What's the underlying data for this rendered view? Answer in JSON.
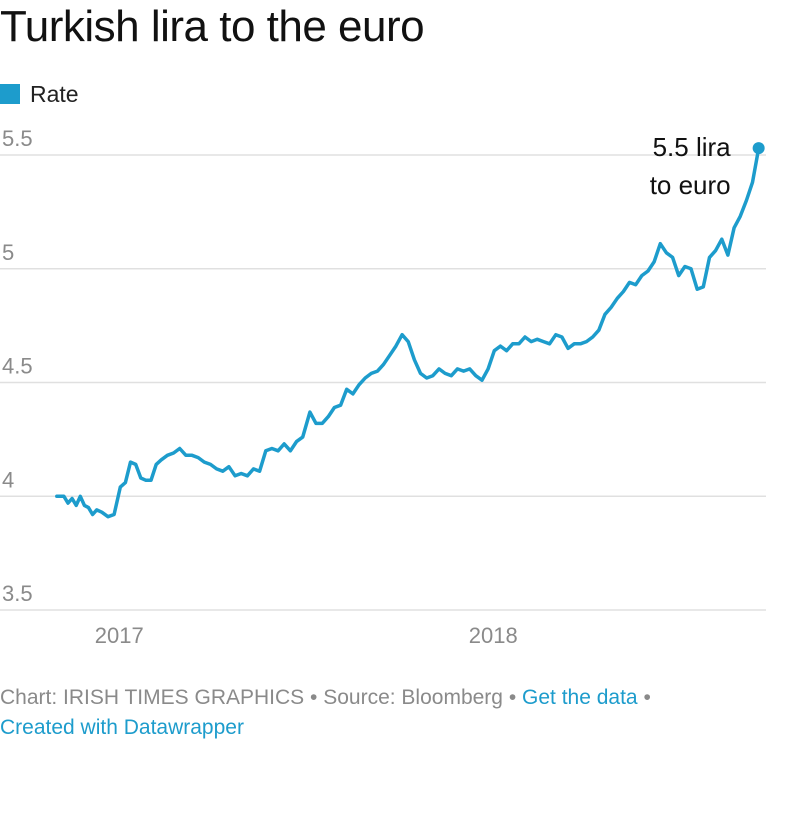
{
  "title": "Turkish lira to the euro",
  "legend": {
    "label": "Rate",
    "color": "#1d9ccc"
  },
  "annotation": {
    "line1": "5.5 lira",
    "line2": "to euro"
  },
  "footer": {
    "chart_credit": "Chart: IRISH TIMES GRAPHICS",
    "source": "Source: Bloomberg",
    "get_data": "Get the data",
    "created_with": "Created with Datawrapper",
    "separator": "•"
  },
  "colors": {
    "line": "#1d9ccc",
    "grid": "#e0e0e0",
    "axis_text": "#8a8a8a"
  },
  "chart_data": {
    "type": "line",
    "title": "Turkish lira to the euro",
    "xlabel": "",
    "ylabel": "",
    "ylim": [
      3.5,
      5.5
    ],
    "yticks": [
      3.5,
      4,
      4.5,
      5,
      5.5
    ],
    "ytick_labels": [
      "3.5",
      "4",
      "4.5",
      "5",
      "5.5"
    ],
    "xticks": [
      "2017-01-01",
      "2018-01-01"
    ],
    "xtick_labels": [
      "2017",
      "2018"
    ],
    "xlim": [
      "2016-10-01",
      "2018-10-01"
    ],
    "grid": true,
    "legend_position": "top-left",
    "series": [
      {
        "name": "Rate",
        "x": [
          "2016-11-01",
          "2016-11-08",
          "2016-11-12",
          "2016-11-16",
          "2016-11-20",
          "2016-11-24",
          "2016-11-28",
          "2016-12-02",
          "2016-12-06",
          "2016-12-10",
          "2016-12-15",
          "2016-12-21",
          "2016-12-27",
          "2017-01-02",
          "2017-01-07",
          "2017-01-12",
          "2017-01-17",
          "2017-01-22",
          "2017-01-27",
          "2017-02-01",
          "2017-02-06",
          "2017-02-11",
          "2017-02-17",
          "2017-02-23",
          "2017-03-01",
          "2017-03-07",
          "2017-03-13",
          "2017-03-19",
          "2017-03-25",
          "2017-03-31",
          "2017-04-06",
          "2017-04-12",
          "2017-04-18",
          "2017-04-24",
          "2017-04-30",
          "2017-05-06",
          "2017-05-12",
          "2017-05-18",
          "2017-05-24",
          "2017-05-30",
          "2017-06-05",
          "2017-06-11",
          "2017-06-17",
          "2017-06-23",
          "2017-06-29",
          "2017-07-06",
          "2017-07-12",
          "2017-07-18",
          "2017-07-24",
          "2017-07-30",
          "2017-08-05",
          "2017-08-11",
          "2017-08-17",
          "2017-08-23",
          "2017-08-29",
          "2017-09-04",
          "2017-09-10",
          "2017-09-16",
          "2017-09-22",
          "2017-09-28",
          "2017-10-04",
          "2017-10-10",
          "2017-10-16",
          "2017-10-22",
          "2017-10-28",
          "2017-11-03",
          "2017-11-09",
          "2017-11-15",
          "2017-11-21",
          "2017-11-27",
          "2017-12-03",
          "2017-12-09",
          "2017-12-15",
          "2017-12-21",
          "2017-12-27",
          "2018-01-02",
          "2018-01-08",
          "2018-01-14",
          "2018-01-20",
          "2018-01-26",
          "2018-02-01",
          "2018-02-07",
          "2018-02-13",
          "2018-02-19",
          "2018-02-25",
          "2018-03-03",
          "2018-03-09",
          "2018-03-15",
          "2018-03-21",
          "2018-03-27",
          "2018-04-02",
          "2018-04-08",
          "2018-04-14",
          "2018-04-20",
          "2018-04-26",
          "2018-05-02",
          "2018-05-08",
          "2018-05-14",
          "2018-05-20",
          "2018-05-26",
          "2018-06-01",
          "2018-06-07",
          "2018-06-13",
          "2018-06-19",
          "2018-06-25",
          "2018-07-01",
          "2018-07-07",
          "2018-07-13",
          "2018-07-19",
          "2018-07-25",
          "2018-07-31",
          "2018-08-06",
          "2018-08-12",
          "2018-08-18",
          "2018-08-24",
          "2018-08-30",
          "2018-09-05",
          "2018-09-11",
          "2018-09-17"
        ],
        "values": [
          4.0,
          4.0,
          3.97,
          3.99,
          3.96,
          4.0,
          3.96,
          3.95,
          3.92,
          3.94,
          3.93,
          3.91,
          3.92,
          4.04,
          4.06,
          4.15,
          4.14,
          4.08,
          4.07,
          4.07,
          4.14,
          4.16,
          4.18,
          4.19,
          4.21,
          4.18,
          4.18,
          4.17,
          4.15,
          4.14,
          4.12,
          4.11,
          4.13,
          4.09,
          4.1,
          4.09,
          4.12,
          4.11,
          4.2,
          4.21,
          4.2,
          4.23,
          4.2,
          4.24,
          4.26,
          4.37,
          4.32,
          4.32,
          4.35,
          4.39,
          4.4,
          4.47,
          4.45,
          4.49,
          4.52,
          4.54,
          4.55,
          4.58,
          4.62,
          4.66,
          4.71,
          4.68,
          4.6,
          4.54,
          4.52,
          4.53,
          4.56,
          4.54,
          4.53,
          4.56,
          4.55,
          4.56,
          4.53,
          4.51,
          4.56,
          4.64,
          4.66,
          4.64,
          4.67,
          4.67,
          4.7,
          4.68,
          4.69,
          4.68,
          4.67,
          4.71,
          4.7,
          4.65,
          4.67,
          4.67,
          4.68,
          4.7,
          4.73,
          4.8,
          4.83,
          4.87,
          4.9,
          4.94,
          4.93,
          4.97,
          4.99,
          5.03,
          5.11,
          5.07,
          5.05,
          4.97,
          5.01,
          5.0,
          4.91,
          4.92,
          5.05,
          5.08,
          5.13,
          5.06,
          5.18,
          5.23,
          5.3,
          5.38,
          5.53
        ]
      }
    ]
  }
}
